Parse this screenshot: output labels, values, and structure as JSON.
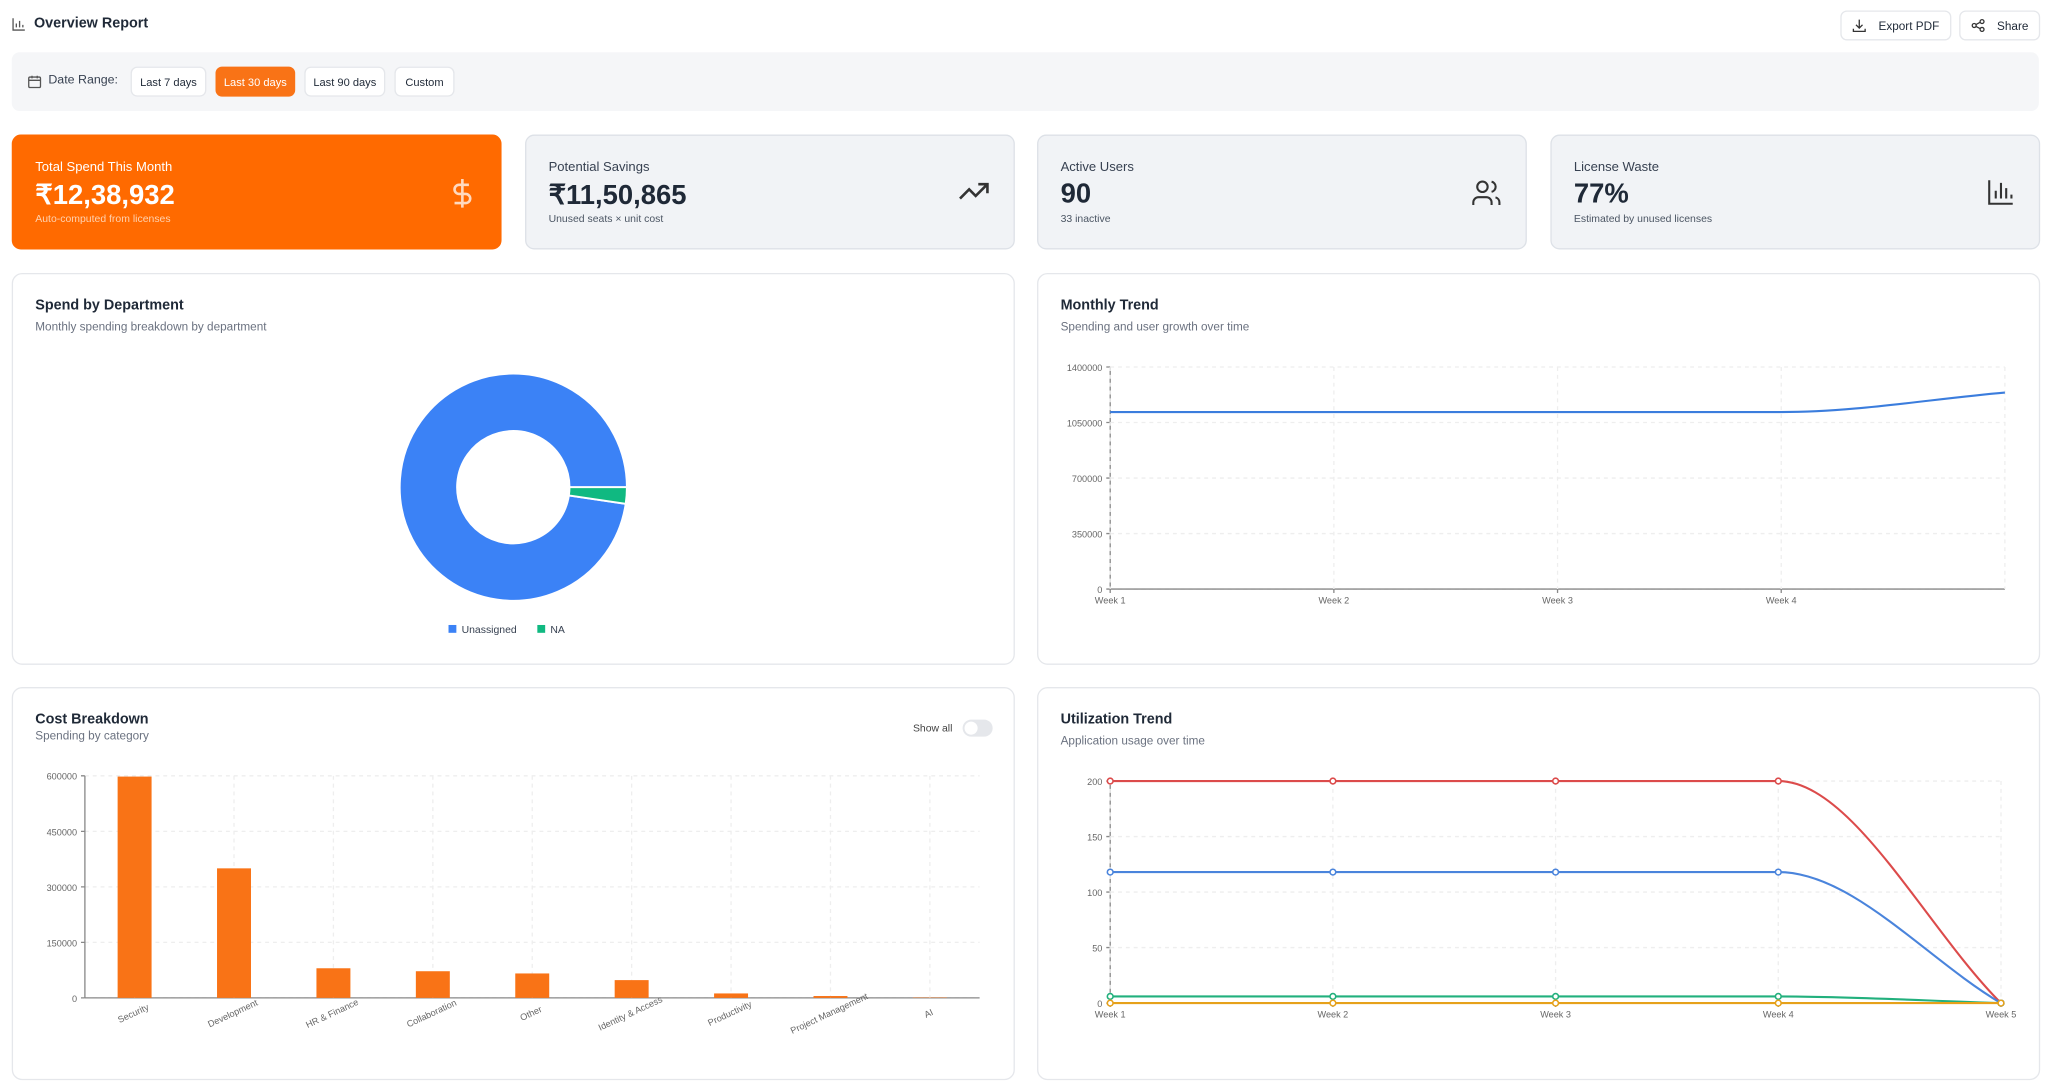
{
  "header": {
    "title": "Overview Report",
    "buttons": [
      "Export PDF",
      "Share"
    ]
  },
  "date_range": {
    "label": "Date Range:",
    "options": [
      "Last 7 days",
      "Last 30 days",
      "Last 90 days",
      "Custom"
    ],
    "selected": 1
  },
  "kpis": [
    {
      "label": "Total Spend This Month",
      "value": "₹12,38,932",
      "note": "Auto-computed from licenses"
    },
    {
      "label": "Potential Savings",
      "value": "₹11,50,865",
      "note": "Unused seats × unit cost"
    },
    {
      "label": "Active Users",
      "value": "90",
      "note": "33 inactive"
    },
    {
      "label": "License Waste",
      "value": "77%",
      "note": "Estimated by unused licenses"
    }
  ],
  "chart_data": [
    {
      "type": "pie",
      "title": "Spend by Department",
      "subtitle": "Monthly spending breakdown by department",
      "categories": [
        "Unassigned",
        "NA"
      ],
      "values": [
        1210000,
        29000
      ],
      "colors": [
        "#3b82f6",
        "#10b981"
      ],
      "donut": true
    },
    {
      "type": "line",
      "title": "Monthly Trend",
      "subtitle": "Spending and user growth over time",
      "categories": [
        "Week 1",
        "Week 2",
        "Week 3",
        "Week 4",
        null
      ],
      "values": [
        1116000,
        1116000,
        1116000,
        1116000,
        1239000
      ],
      "color": "#3b7ddd",
      "ylim": [
        0,
        1400000
      ],
      "yticks": [
        0,
        350000,
        700000,
        1050000,
        1400000
      ],
      "grid": true,
      "markers": false
    },
    {
      "type": "bar",
      "title": "Cost Breakdown",
      "subtitle": "Spending by category",
      "toggle": "Show all",
      "categories": [
        "Security",
        "Development",
        "HR & Finance",
        "Collaboration",
        "Other",
        "Identity & Access",
        "Productivity",
        "Project Management",
        "AI"
      ],
      "values": [
        598000,
        350000,
        80000,
        72000,
        66000,
        48000,
        12000,
        5000,
        1000
      ],
      "color": "#f97316",
      "ylim": [
        0,
        600000
      ],
      "yticks": [
        0,
        150000,
        300000,
        450000,
        600000
      ],
      "grid": true
    },
    {
      "type": "line",
      "title": "Utilization Trend",
      "subtitle": "Application usage over time",
      "categories": [
        "Week 1",
        "Week 2",
        "Week 3",
        "Week 4",
        "Week 5"
      ],
      "series": [
        {
          "color": "#dc4b4b",
          "values": [
            200,
            200,
            200,
            200,
            0
          ]
        },
        {
          "color": "#4a84dc",
          "values": [
            118,
            118,
            118,
            118,
            0
          ]
        },
        {
          "color": "#22b07d",
          "values": [
            6,
            6,
            6,
            6,
            0
          ]
        },
        {
          "color": "#e6a11a",
          "values": [
            0,
            0,
            0,
            0,
            0
          ]
        }
      ],
      "ylim": [
        0,
        200
      ],
      "yticks": [
        0,
        50,
        100,
        150,
        200
      ],
      "grid": true,
      "markers": true
    }
  ]
}
